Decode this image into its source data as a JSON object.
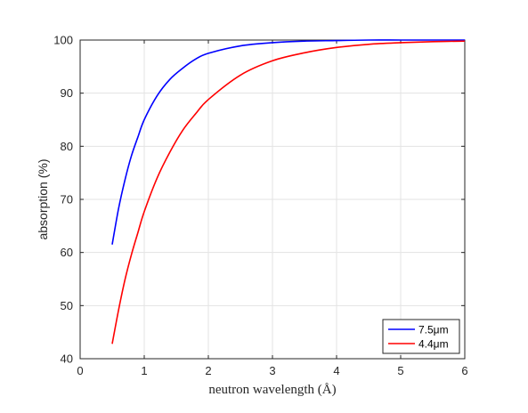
{
  "chart_data": {
    "type": "line",
    "xlabel": "neutron wavelength (Å)",
    "ylabel": "absorption (%)",
    "xlim": [
      0,
      6
    ],
    "ylim": [
      40,
      100
    ],
    "xticks": [
      0,
      1,
      2,
      3,
      4,
      5,
      6
    ],
    "yticks": [
      40,
      50,
      60,
      70,
      80,
      90,
      100
    ],
    "grid": true,
    "legend_position": "bottom-right",
    "series": [
      {
        "name": "7.5μm",
        "color": "#0000ff",
        "x": [
          0.5,
          0.6,
          0.7,
          0.8,
          0.9,
          1.0,
          1.2,
          1.4,
          1.6,
          1.8,
          2.0,
          2.5,
          3.0,
          3.5,
          4.0,
          4.5,
          5.0,
          5.5,
          6.0
        ],
        "y": [
          61.5,
          68.3,
          73.7,
          78.2,
          81.7,
          85.0,
          89.5,
          92.6,
          94.7,
          96.4,
          97.5,
          98.9,
          99.5,
          99.8,
          99.9,
          100.0,
          100.0,
          100.0,
          100.0
        ]
      },
      {
        "name": "4.4μm",
        "color": "#ff0000",
        "x": [
          0.5,
          0.6,
          0.7,
          0.8,
          0.9,
          1.0,
          1.2,
          1.4,
          1.6,
          1.8,
          2.0,
          2.5,
          3.0,
          3.5,
          4.0,
          4.5,
          5.0,
          5.5,
          6.0
        ],
        "y": [
          42.8,
          49.2,
          54.9,
          59.6,
          63.7,
          67.7,
          74.0,
          78.9,
          83.0,
          86.1,
          88.8,
          93.4,
          96.1,
          97.6,
          98.6,
          99.2,
          99.5,
          99.7,
          99.8
        ]
      }
    ]
  }
}
